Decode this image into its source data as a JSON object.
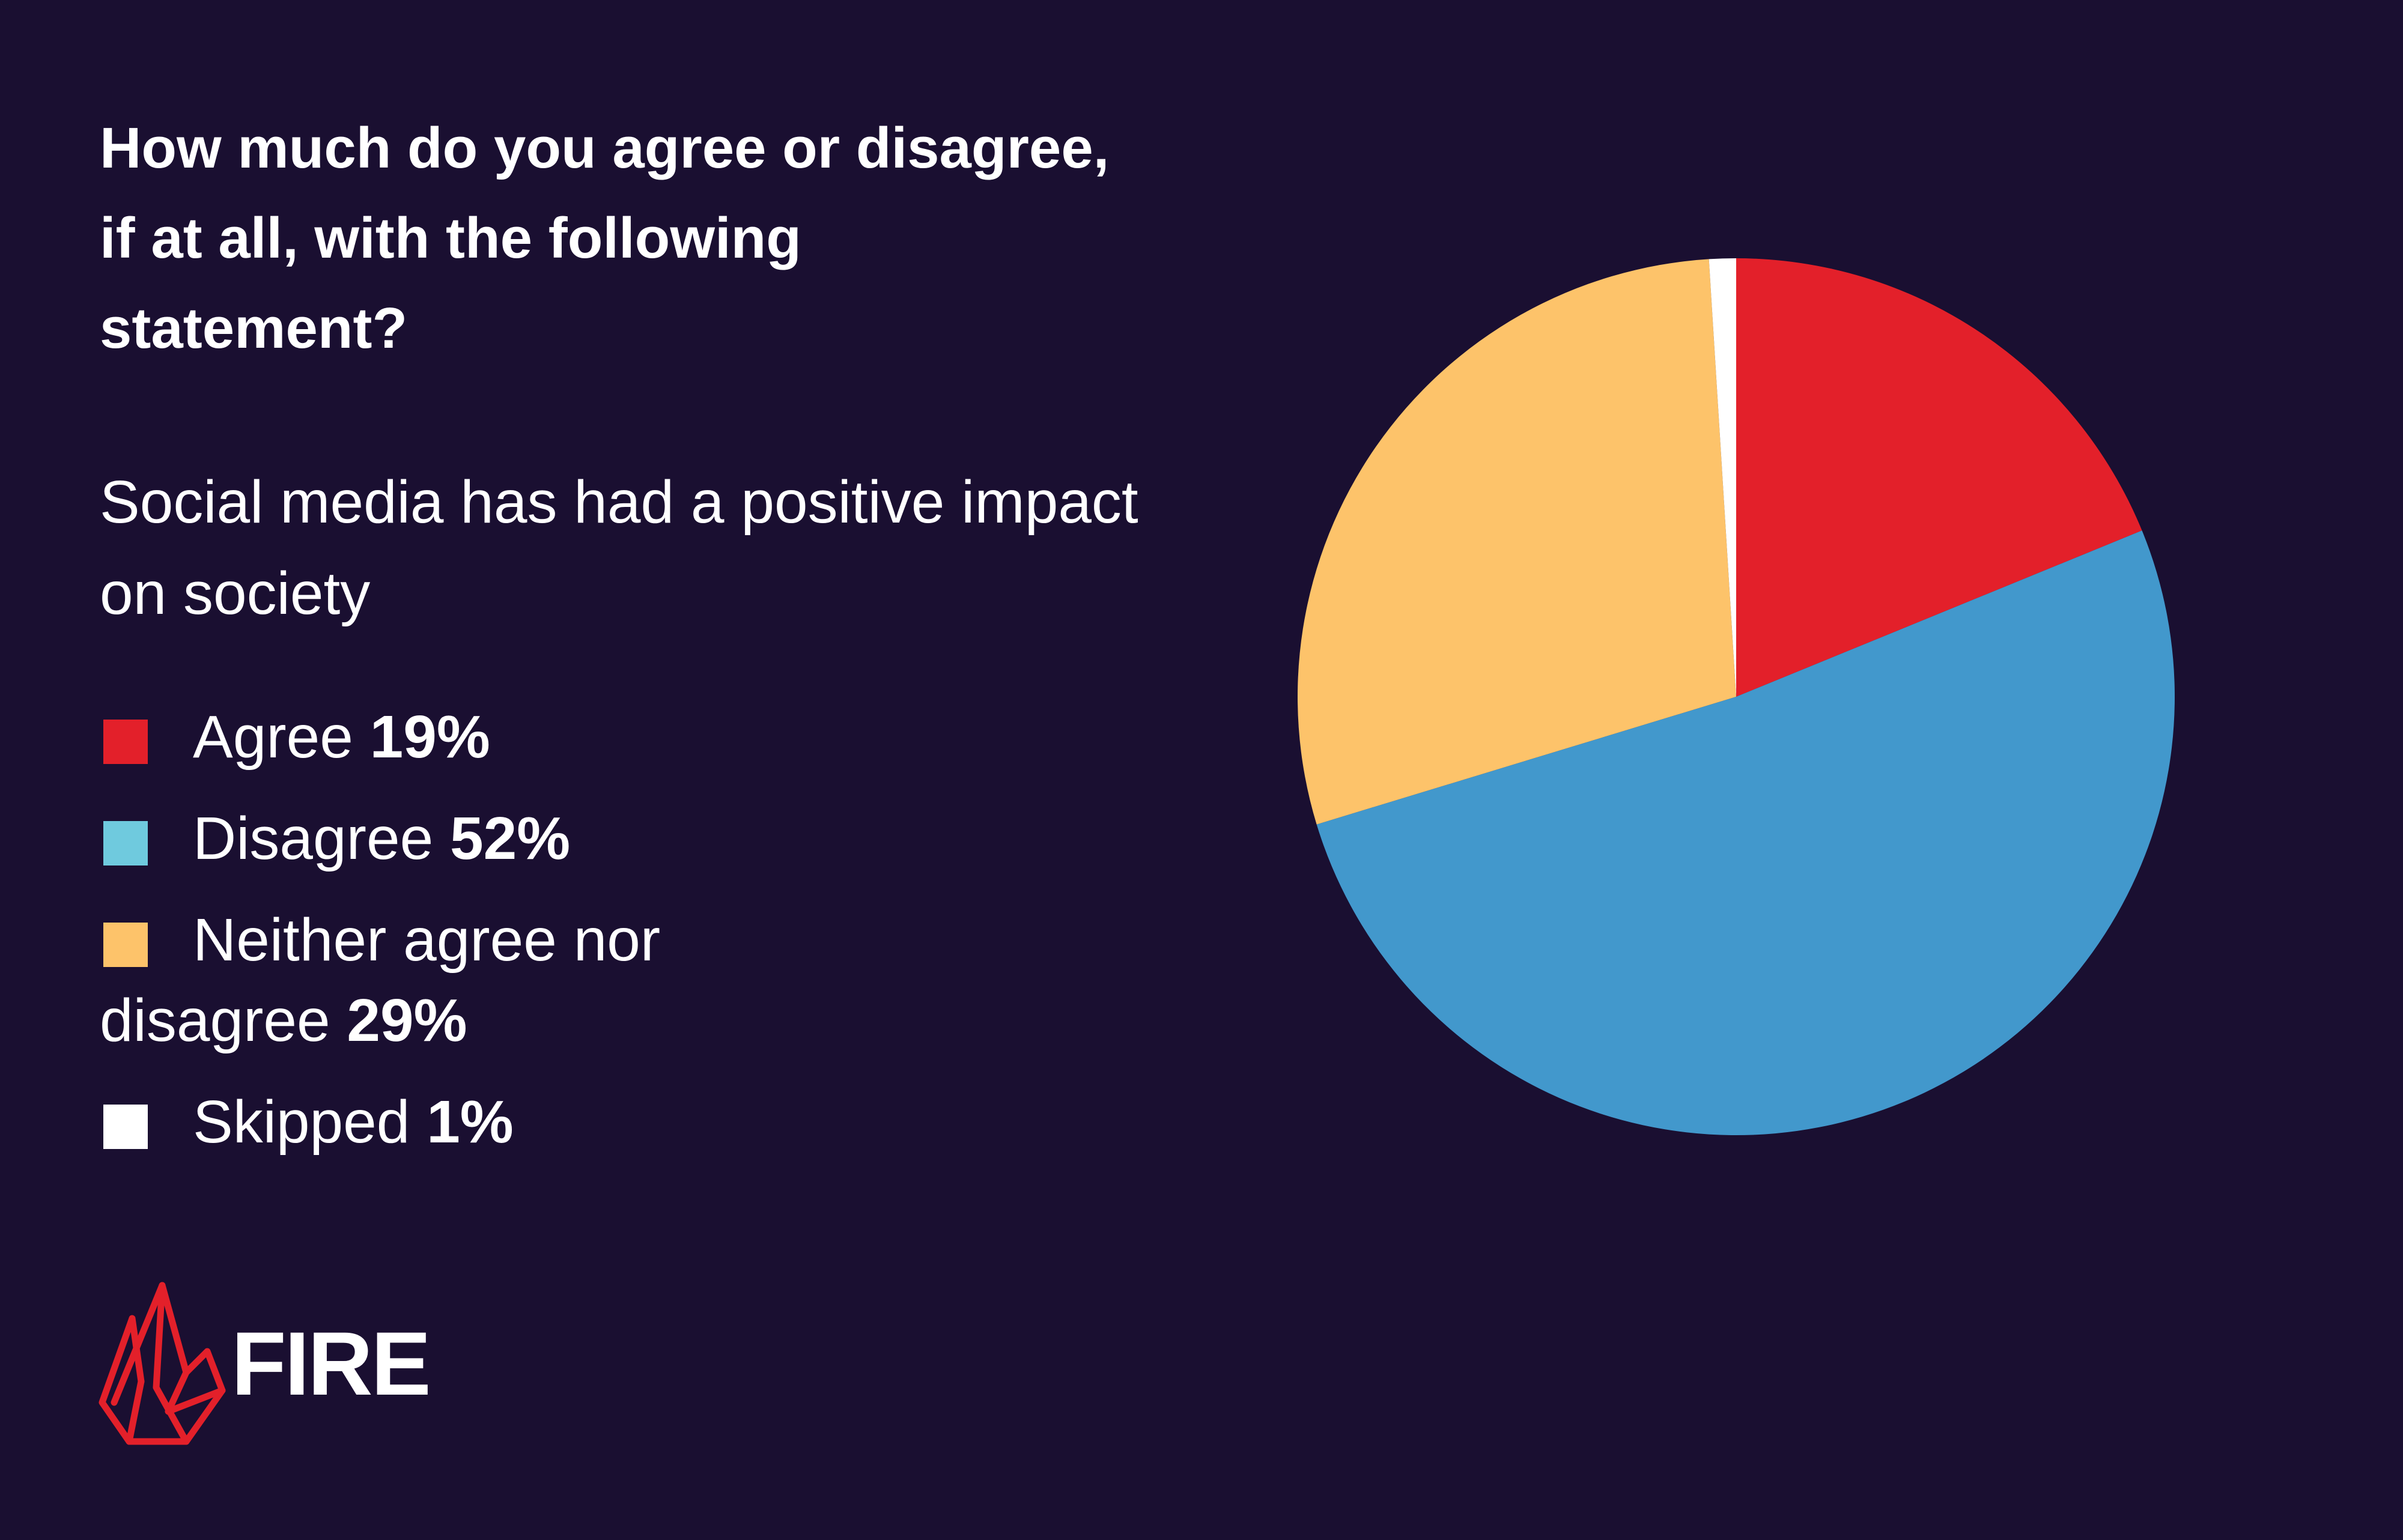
{
  "title": "How much do you agree or disagree, if at all, with the following statement?",
  "subtitle": "Social media has had a positive impact on society",
  "legend": [
    {
      "label": "Agree",
      "value": "19%",
      "color": "#e3202a"
    },
    {
      "label": "Disagree",
      "value": "52%",
      "color": "#6fcade"
    },
    {
      "label": "Neither agree nor disagree",
      "value": "29%",
      "color": "#fdc36a"
    },
    {
      "label": "Skipped",
      "value": "1%",
      "color": "#ffffff"
    }
  ],
  "logo": {
    "text": "FIRE",
    "icon": "flame-icon",
    "color": "#e3202a"
  },
  "chart_data": {
    "type": "pie",
    "categories": [
      "Agree",
      "Disagree",
      "Neither agree nor disagree",
      "Skipped"
    ],
    "values": [
      19,
      52,
      29,
      1
    ],
    "colors": [
      "#e3202a",
      "#4298cc",
      "#fdc36a",
      "#ffffff"
    ],
    "title": "How much do you agree or disagree, if at all, with the following statement?",
    "subtitle": "Social media has had a positive impact on society",
    "legend_position": "left"
  }
}
